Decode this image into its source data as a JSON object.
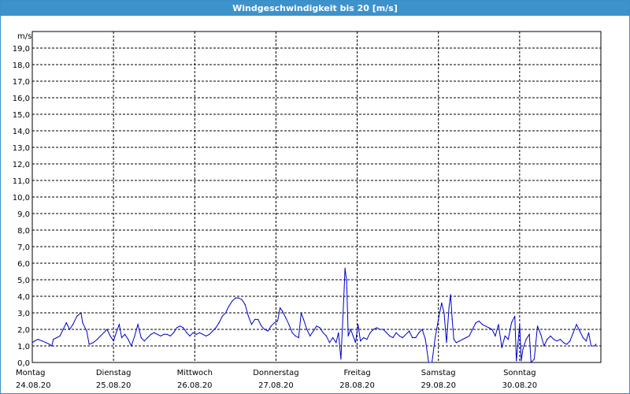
{
  "window": {
    "title": "Windgeschwindigkeit bis 20 [m/s]"
  },
  "colors": {
    "titlebar": "#3d92cc",
    "series": "#0000c8",
    "grid": "#000000"
  },
  "chart_data": {
    "type": "line",
    "ylabel": "m/s",
    "ylim": [
      0,
      20
    ],
    "y_ticks": [
      "0,0",
      "1,0",
      "2,0",
      "3,0",
      "4,0",
      "5,0",
      "6,0",
      "7,0",
      "8,0",
      "9,0",
      "10,0",
      "11,0",
      "12,0",
      "13,0",
      "14,0",
      "15,0",
      "16,0",
      "17,0",
      "18,0",
      "19,0"
    ],
    "x_range_days": [
      0,
      7
    ],
    "days": [
      {
        "weekday": "Montag",
        "date": "24.08.20"
      },
      {
        "weekday": "Dienstag",
        "date": "25.08.20"
      },
      {
        "weekday": "Mittwoch",
        "date": "26.08.20"
      },
      {
        "weekday": "Donnerstag",
        "date": "27.08.20"
      },
      {
        "weekday": "Freitag",
        "date": "28.08.20"
      },
      {
        "weekday": "Samstag",
        "date": "29.08.20"
      },
      {
        "weekday": "Sonntag",
        "date": "30.08.20"
      }
    ],
    "grid": true,
    "series": [
      {
        "values": [
          [
            0.0,
            1.2
          ],
          [
            0.03,
            1.3
          ],
          [
            0.07,
            1.4
          ],
          [
            0.12,
            1.3
          ],
          [
            0.17,
            1.2
          ],
          [
            0.21,
            1.1
          ],
          [
            0.24,
            1.0
          ],
          [
            0.26,
            1.4
          ],
          [
            0.3,
            1.5
          ],
          [
            0.34,
            1.6
          ],
          [
            0.38,
            2.0
          ],
          [
            0.42,
            2.4
          ],
          [
            0.46,
            2.0
          ],
          [
            0.5,
            2.3
          ],
          [
            0.55,
            2.8
          ],
          [
            0.6,
            3.0
          ],
          [
            0.62,
            2.4
          ],
          [
            0.67,
            1.9
          ],
          [
            0.7,
            1.1
          ],
          [
            0.75,
            1.2
          ],
          [
            0.8,
            1.4
          ],
          [
            0.84,
            1.6
          ],
          [
            0.88,
            1.8
          ],
          [
            0.92,
            2.0
          ],
          [
            0.96,
            1.6
          ],
          [
            1.0,
            1.3
          ],
          [
            1.04,
            1.9
          ],
          [
            1.07,
            2.3
          ],
          [
            1.1,
            1.5
          ],
          [
            1.14,
            1.7
          ],
          [
            1.18,
            1.4
          ],
          [
            1.22,
            1.0
          ],
          [
            1.26,
            1.6
          ],
          [
            1.3,
            2.3
          ],
          [
            1.34,
            1.5
          ],
          [
            1.38,
            1.3
          ],
          [
            1.42,
            1.5
          ],
          [
            1.46,
            1.7
          ],
          [
            1.5,
            1.8
          ],
          [
            1.54,
            1.7
          ],
          [
            1.58,
            1.6
          ],
          [
            1.62,
            1.7
          ],
          [
            1.66,
            1.7
          ],
          [
            1.7,
            1.6
          ],
          [
            1.74,
            1.8
          ],
          [
            1.78,
            2.1
          ],
          [
            1.82,
            2.2
          ],
          [
            1.86,
            2.1
          ],
          [
            1.9,
            1.8
          ],
          [
            1.94,
            1.6
          ],
          [
            1.98,
            1.8
          ],
          [
            2.02,
            1.7
          ],
          [
            2.06,
            1.8
          ],
          [
            2.1,
            1.7
          ],
          [
            2.14,
            1.6
          ],
          [
            2.18,
            1.7
          ],
          [
            2.22,
            1.9
          ],
          [
            2.26,
            2.1
          ],
          [
            2.3,
            2.4
          ],
          [
            2.34,
            2.8
          ],
          [
            2.38,
            3.0
          ],
          [
            2.42,
            3.4
          ],
          [
            2.46,
            3.7
          ],
          [
            2.5,
            3.9
          ],
          [
            2.54,
            3.9
          ],
          [
            2.58,
            3.8
          ],
          [
            2.62,
            3.5
          ],
          [
            2.66,
            2.8
          ],
          [
            2.7,
            2.3
          ],
          [
            2.74,
            2.6
          ],
          [
            2.78,
            2.6
          ],
          [
            2.82,
            2.2
          ],
          [
            2.86,
            2.0
          ],
          [
            2.9,
            1.9
          ],
          [
            2.94,
            2.2
          ],
          [
            2.98,
            2.4
          ],
          [
            3.02,
            2.5
          ],
          [
            3.05,
            3.3
          ],
          [
            3.08,
            3.1
          ],
          [
            3.12,
            2.7
          ],
          [
            3.16,
            2.3
          ],
          [
            3.2,
            1.8
          ],
          [
            3.24,
            1.6
          ],
          [
            3.28,
            1.5
          ],
          [
            3.31,
            3.0
          ],
          [
            3.34,
            2.6
          ],
          [
            3.38,
            2.0
          ],
          [
            3.42,
            1.6
          ],
          [
            3.46,
            1.9
          ],
          [
            3.5,
            2.2
          ],
          [
            3.54,
            2.1
          ],
          [
            3.58,
            1.8
          ],
          [
            3.62,
            1.6
          ],
          [
            3.66,
            1.2
          ],
          [
            3.7,
            1.5
          ],
          [
            3.74,
            1.2
          ],
          [
            3.77,
            1.8
          ],
          [
            3.8,
            0.2
          ],
          [
            3.82,
            2.3
          ],
          [
            3.84,
            4.5
          ],
          [
            3.85,
            5.7
          ],
          [
            3.87,
            4.9
          ],
          [
            3.89,
            1.6
          ],
          [
            3.92,
            2.0
          ],
          [
            3.95,
            1.6
          ],
          [
            3.98,
            1.2
          ],
          [
            4.01,
            2.3
          ],
          [
            4.04,
            1.3
          ],
          [
            4.08,
            1.5
          ],
          [
            4.12,
            1.4
          ],
          [
            4.16,
            1.8
          ],
          [
            4.2,
            2.0
          ],
          [
            4.24,
            2.1
          ],
          [
            4.28,
            2.0
          ],
          [
            4.32,
            2.0
          ],
          [
            4.36,
            1.8
          ],
          [
            4.4,
            1.6
          ],
          [
            4.44,
            1.5
          ],
          [
            4.48,
            1.8
          ],
          [
            4.52,
            1.6
          ],
          [
            4.56,
            1.5
          ],
          [
            4.6,
            1.7
          ],
          [
            4.64,
            1.9
          ],
          [
            4.68,
            1.5
          ],
          [
            4.72,
            1.5
          ],
          [
            4.76,
            1.8
          ],
          [
            4.8,
            2.0
          ],
          [
            4.84,
            1.4
          ],
          [
            4.88,
            0.0
          ],
          [
            4.92,
            0.0
          ],
          [
            4.96,
            1.5
          ],
          [
            5.0,
            2.6
          ],
          [
            5.04,
            3.6
          ],
          [
            5.07,
            3.0
          ],
          [
            5.1,
            1.2
          ],
          [
            5.13,
            3.3
          ],
          [
            5.15,
            4.1
          ],
          [
            5.17,
            2.6
          ],
          [
            5.19,
            1.4
          ],
          [
            5.22,
            1.2
          ],
          [
            5.26,
            1.3
          ],
          [
            5.3,
            1.4
          ],
          [
            5.34,
            1.5
          ],
          [
            5.38,
            1.6
          ],
          [
            5.42,
            2.0
          ],
          [
            5.46,
            2.4
          ],
          [
            5.5,
            2.5
          ],
          [
            5.54,
            2.3
          ],
          [
            5.58,
            2.2
          ],
          [
            5.62,
            2.1
          ],
          [
            5.66,
            2.0
          ],
          [
            5.7,
            1.6
          ],
          [
            5.74,
            2.3
          ],
          [
            5.78,
            0.9
          ],
          [
            5.82,
            1.6
          ],
          [
            5.86,
            1.4
          ],
          [
            5.9,
            2.4
          ],
          [
            5.94,
            2.8
          ],
          [
            5.96,
            0.1
          ],
          [
            6.0,
            2.3
          ],
          [
            6.02,
            0.1
          ],
          [
            6.04,
            0.8
          ],
          [
            6.08,
            1.4
          ],
          [
            6.12,
            1.7
          ],
          [
            6.14,
            0.0
          ],
          [
            6.18,
            0.2
          ],
          [
            6.22,
            2.2
          ],
          [
            6.26,
            1.7
          ],
          [
            6.3,
            1.0
          ],
          [
            6.34,
            1.4
          ],
          [
            6.38,
            1.6
          ],
          [
            6.42,
            1.4
          ],
          [
            6.46,
            1.3
          ],
          [
            6.5,
            1.4
          ],
          [
            6.54,
            1.2
          ],
          [
            6.58,
            1.1
          ],
          [
            6.62,
            1.3
          ],
          [
            6.66,
            1.8
          ],
          [
            6.7,
            2.3
          ],
          [
            6.74,
            1.9
          ],
          [
            6.78,
            1.5
          ],
          [
            6.82,
            1.3
          ],
          [
            6.85,
            1.8
          ],
          [
            6.88,
            1.0
          ],
          [
            6.92,
            1.0
          ],
          [
            6.94,
            1.1
          ]
        ]
      }
    ]
  }
}
